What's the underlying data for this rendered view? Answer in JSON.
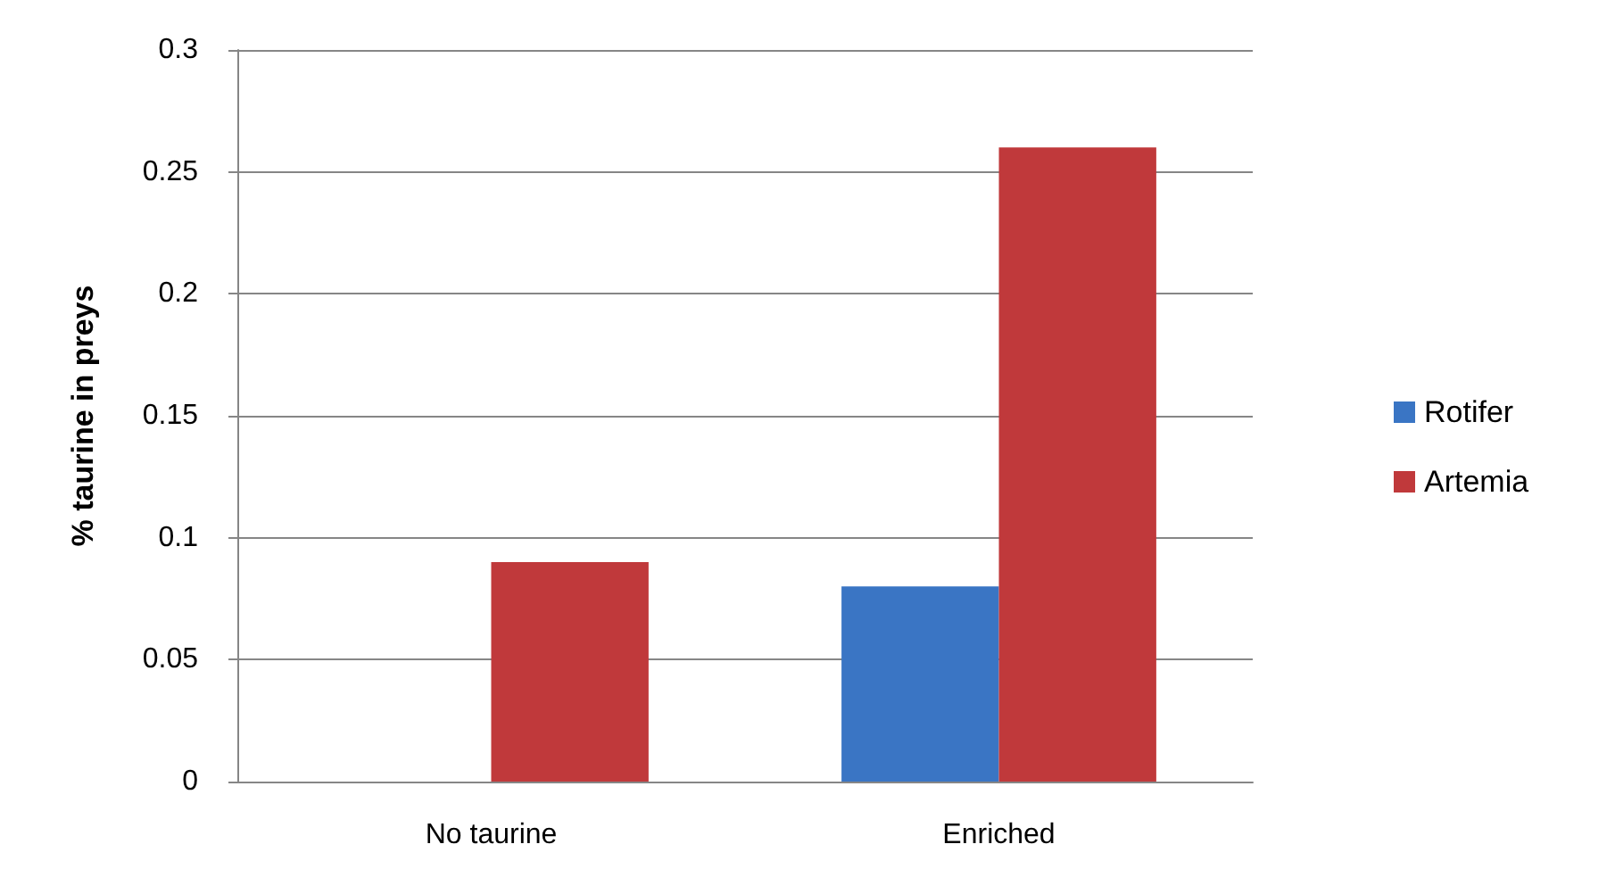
{
  "chart_data": {
    "type": "bar",
    "ylabel": "% taurine in preys",
    "categories": [
      "No taurine",
      "Enriched"
    ],
    "series": [
      {
        "name": "Rotifer",
        "color": "#3a75c4",
        "values": [
          0,
          0.08
        ]
      },
      {
        "name": "Artemia",
        "color": "#c0393b",
        "values": [
          0.09,
          0.26
        ]
      }
    ],
    "ylim": [
      0,
      0.3
    ],
    "yticks": [
      0,
      0.05,
      0.1,
      0.15,
      0.2,
      0.25,
      0.3
    ],
    "grid": "y",
    "legend": "right"
  }
}
